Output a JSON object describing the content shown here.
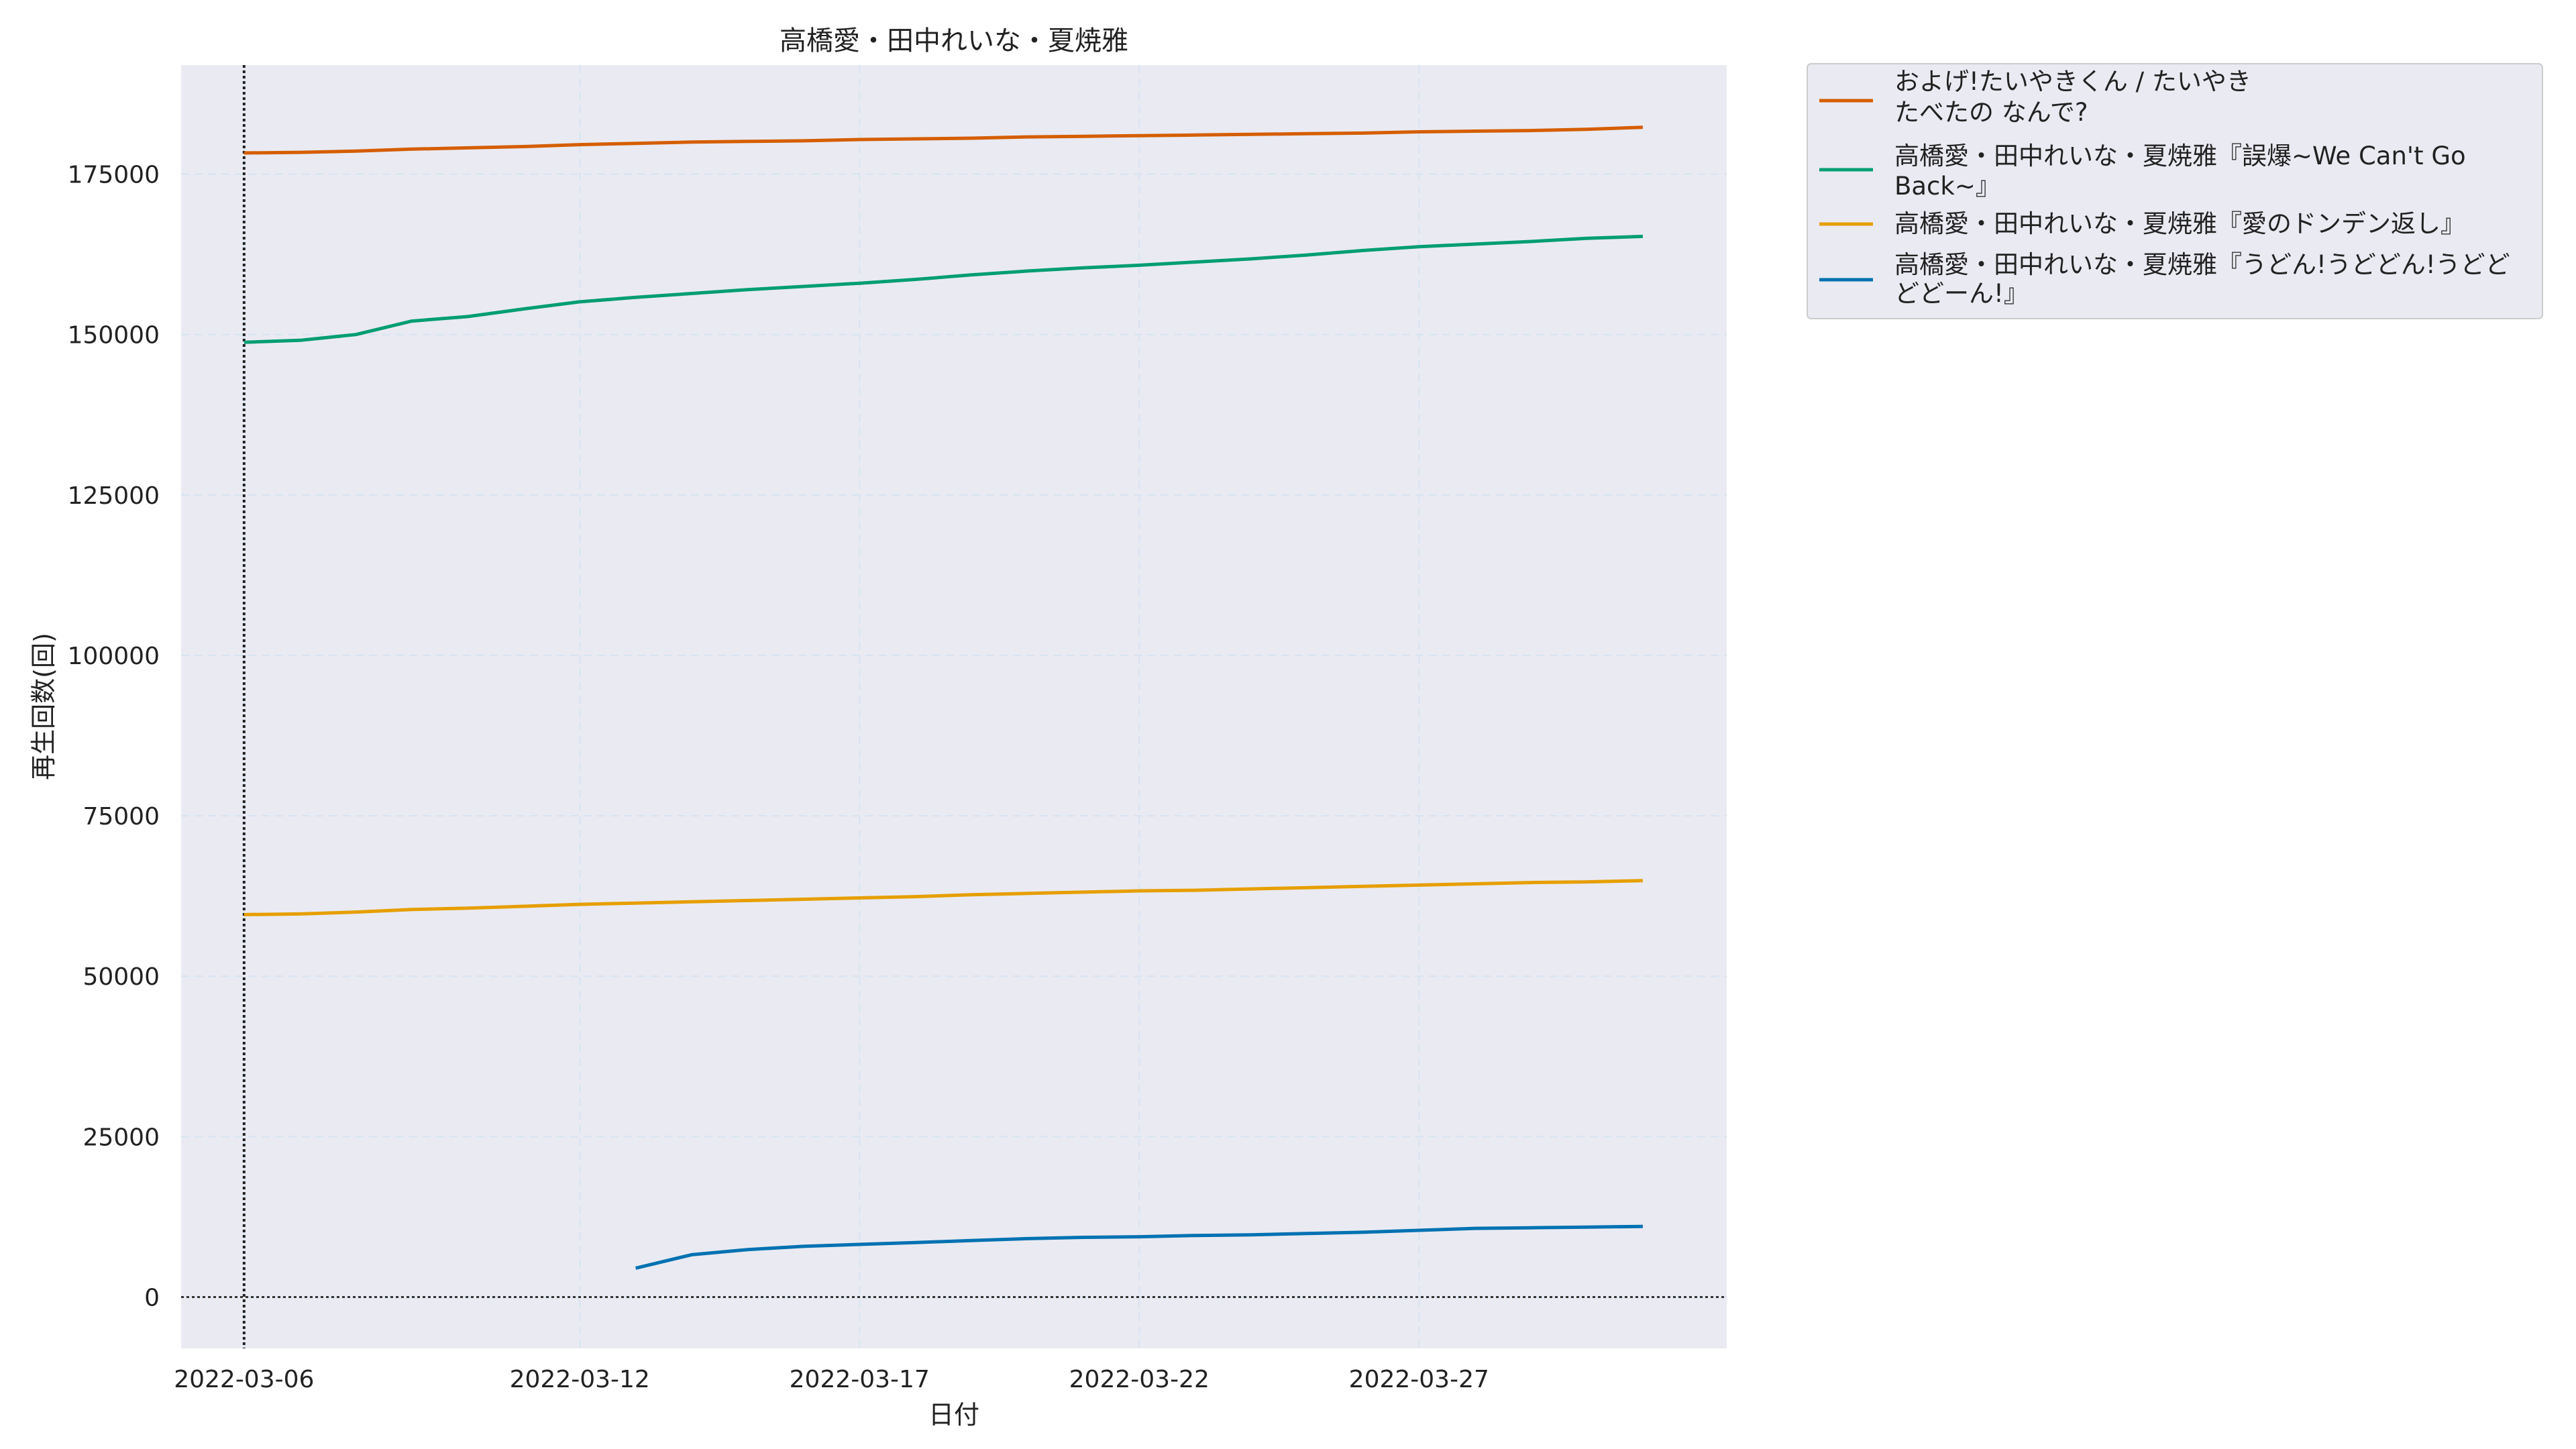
{
  "chart_data": {
    "type": "line",
    "title": "高橋愛・田中れいな・夏焼雅",
    "xlabel": "日付",
    "ylabel": "再生回数(回)",
    "xlim": [
      "2022-03-04T21:00",
      "2022-04-01T12:00"
    ],
    "ylim": [
      -8000,
      192000
    ],
    "xticks": [
      "2022-03-06",
      "2022-03-12",
      "2022-03-17",
      "2022-03-22",
      "2022-03-27"
    ],
    "yticks": [
      0,
      25000,
      50000,
      75000,
      100000,
      125000,
      150000,
      175000
    ],
    "grid": true,
    "legend_position": "outside-top-right",
    "reference_lines": {
      "x": "2022-03-06",
      "y": 0
    },
    "series": [
      {
        "name": "およげ!たいやきくん / たいやき たべたの なんで?",
        "color": "#d55e00",
        "x": [
          "2022-03-06",
          "2022-03-07",
          "2022-03-08",
          "2022-03-09",
          "2022-03-10",
          "2022-03-11",
          "2022-03-12",
          "2022-03-13",
          "2022-03-14",
          "2022-03-15",
          "2022-03-16",
          "2022-03-17",
          "2022-03-18",
          "2022-03-19",
          "2022-03-20",
          "2022-03-21",
          "2022-03-22",
          "2022-03-23",
          "2022-03-24",
          "2022-03-25",
          "2022-03-26",
          "2022-03-27",
          "2022-03-28",
          "2022-03-29",
          "2022-03-30",
          "2022-03-31"
        ],
        "y": [
          178300,
          178400,
          178600,
          178900,
          179100,
          179300,
          179600,
          179800,
          180000,
          180100,
          180200,
          180400,
          180500,
          180600,
          180800,
          180900,
          181000,
          181100,
          181200,
          181300,
          181400,
          181600,
          181700,
          181800,
          182000,
          182300
        ]
      },
      {
        "name": "高橋愛・田中れいな・夏焼雅『誤爆~We Can't Go Back~』",
        "color": "#009e73",
        "x": [
          "2022-03-06",
          "2022-03-07",
          "2022-03-08",
          "2022-03-09",
          "2022-03-10",
          "2022-03-11",
          "2022-03-12",
          "2022-03-13",
          "2022-03-14",
          "2022-03-15",
          "2022-03-16",
          "2022-03-17",
          "2022-03-18",
          "2022-03-19",
          "2022-03-20",
          "2022-03-21",
          "2022-03-22",
          "2022-03-23",
          "2022-03-24",
          "2022-03-25",
          "2022-03-26",
          "2022-03-27",
          "2022-03-28",
          "2022-03-29",
          "2022-03-30",
          "2022-03-31"
        ],
        "y": [
          148800,
          149100,
          150000,
          152100,
          152800,
          154000,
          155100,
          155800,
          156400,
          157000,
          157500,
          158000,
          158600,
          159300,
          159900,
          160400,
          160800,
          161300,
          161800,
          162400,
          163100,
          163700,
          164100,
          164500,
          165000,
          165300
        ]
      },
      {
        "name": "高橋愛・田中れいな・夏焼雅『愛のドンデン返し』",
        "color": "#e69f00",
        "x": [
          "2022-03-06",
          "2022-03-07",
          "2022-03-08",
          "2022-03-09",
          "2022-03-10",
          "2022-03-11",
          "2022-03-12",
          "2022-03-13",
          "2022-03-14",
          "2022-03-15",
          "2022-03-16",
          "2022-03-17",
          "2022-03-18",
          "2022-03-19",
          "2022-03-20",
          "2022-03-21",
          "2022-03-22",
          "2022-03-23",
          "2022-03-24",
          "2022-03-25",
          "2022-03-26",
          "2022-03-27",
          "2022-03-28",
          "2022-03-29",
          "2022-03-30",
          "2022-03-31"
        ],
        "y": [
          59600,
          59700,
          60000,
          60400,
          60600,
          60900,
          61200,
          61400,
          61600,
          61800,
          62000,
          62200,
          62400,
          62700,
          62900,
          63100,
          63300,
          63400,
          63600,
          63800,
          64000,
          64200,
          64400,
          64600,
          64700,
          64900
        ]
      },
      {
        "name": "高橋愛・田中れいな・夏焼雅『うどん!うどどん!うどどどどーん!』",
        "color": "#0072b2",
        "x": [
          "2022-03-13",
          "2022-03-14",
          "2022-03-15",
          "2022-03-16",
          "2022-03-17",
          "2022-03-18",
          "2022-03-19",
          "2022-03-20",
          "2022-03-21",
          "2022-03-22",
          "2022-03-23",
          "2022-03-24",
          "2022-03-25",
          "2022-03-26",
          "2022-03-27",
          "2022-03-28",
          "2022-03-29",
          "2022-03-30",
          "2022-03-31"
        ],
        "y": [
          4500,
          6600,
          7400,
          7900,
          8200,
          8500,
          8800,
          9100,
          9300,
          9400,
          9600,
          9700,
          9900,
          10100,
          10400,
          10700,
          10800,
          10900,
          11000
        ]
      }
    ]
  }
}
